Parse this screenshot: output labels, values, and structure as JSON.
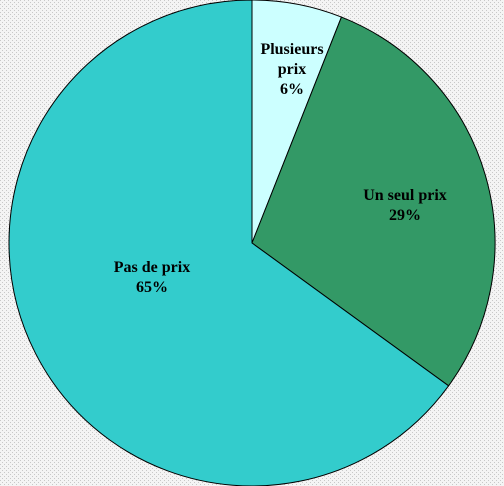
{
  "chart_data": {
    "type": "pie",
    "categories": [
      "Plusieurs prix",
      "Un seul prix",
      "Pas de prix"
    ],
    "values": [
      6,
      29,
      65
    ],
    "value_labels": [
      "6%",
      "29%",
      "65%"
    ],
    "colors": [
      "#ccffff",
      "#339966",
      "#33cccc"
    ]
  }
}
